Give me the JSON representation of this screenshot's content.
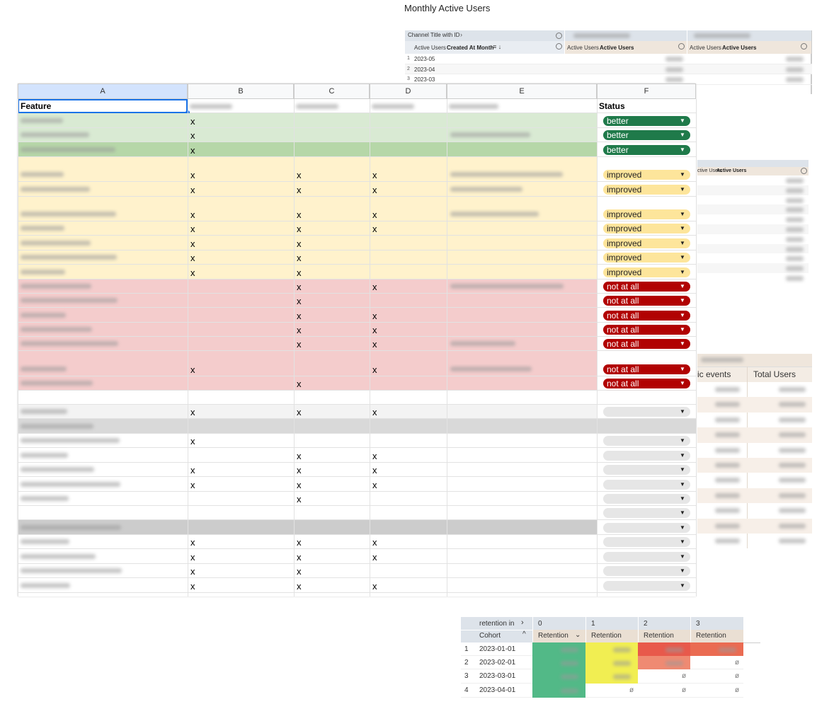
{
  "title": "Monthly Active Users",
  "pivot": {
    "header": "Channel Title with ID",
    "row_metric": "Active Users",
    "row_field": "Created At Month",
    "columns": [
      {
        "metric": "Active Users",
        "field": "Active Users"
      },
      {
        "metric": "Active Users",
        "field": "Active Users"
      }
    ],
    "rows": [
      {
        "index": 1,
        "month": "2023-05"
      },
      {
        "index": 2,
        "month": "2023-04"
      },
      {
        "index": 3,
        "month": "2023-03"
      }
    ]
  },
  "side_panel": {
    "metric": "ctive Users",
    "field": "Active Users"
  },
  "events_panel": {
    "columns": [
      "ic events",
      "Total Users"
    ]
  },
  "sheet": {
    "column_letters": [
      "A",
      "B",
      "C",
      "D",
      "E",
      "F"
    ],
    "feature_header": "Feature",
    "status_header": "Status",
    "rows": [
      {
        "marks": [
          "x",
          null,
          null
        ],
        "status": "better",
        "fill": "#d9ead3"
      },
      {
        "marks": [
          "x",
          null,
          null
        ],
        "status": "better",
        "fill": "#d9ead3"
      },
      {
        "marks": [
          "x",
          null,
          null
        ],
        "status": "better",
        "fill": "#b6d7a8"
      },
      {
        "marks": [
          "x",
          "x",
          "x"
        ],
        "status": "improved",
        "fill": "#fff2cc"
      },
      {
        "marks": [
          "x",
          "x",
          "x"
        ],
        "status": "improved",
        "fill": "#fff2cc"
      },
      {
        "marks": [
          "x",
          "x",
          "x"
        ],
        "status": "improved",
        "fill": "#fff2cc"
      },
      {
        "marks": [
          "x",
          "x",
          "x"
        ],
        "status": "improved",
        "fill": "#fff2cc"
      },
      {
        "marks": [
          "x",
          "x",
          null
        ],
        "status": "improved",
        "fill": "#fff2cc"
      },
      {
        "marks": [
          "x",
          "x",
          null
        ],
        "status": "improved",
        "fill": "#fff2cc"
      },
      {
        "marks": [
          "x",
          "x",
          null
        ],
        "status": "improved",
        "fill": "#fff2cc"
      },
      {
        "marks": [
          null,
          "x",
          "x"
        ],
        "status": "not at all",
        "fill": "#f4cccc"
      },
      {
        "marks": [
          null,
          "x",
          null
        ],
        "status": "not at all",
        "fill": "#f4cccc"
      },
      {
        "marks": [
          null,
          "x",
          "x"
        ],
        "status": "not at all",
        "fill": "#f4cccc"
      },
      {
        "marks": [
          null,
          "x",
          "x"
        ],
        "status": "not at all",
        "fill": "#f4cccc"
      },
      {
        "marks": [
          null,
          "x",
          "x"
        ],
        "status": "not at all",
        "fill": "#f4cccc"
      },
      {
        "marks": [
          "x",
          null,
          "x"
        ],
        "status": "not at all",
        "fill": "#f4cccc"
      },
      {
        "marks": [
          null,
          "x",
          null
        ],
        "status": "not at all",
        "fill": "#f4cccc"
      },
      {
        "marks": [
          null,
          null,
          null
        ],
        "status": null,
        "dropdown": false,
        "fill": "#ffffff"
      },
      {
        "marks": [
          "x",
          "x",
          "x"
        ],
        "status": null,
        "fill": "#f3f3f3"
      },
      {
        "marks": [
          null,
          null,
          null
        ],
        "status": null,
        "dropdown": false,
        "fill": "#d9d9d9"
      },
      {
        "marks": [
          "x",
          null,
          null
        ],
        "status": null,
        "fill": "#ffffff"
      },
      {
        "marks": [
          null,
          "x",
          "x"
        ],
        "status": null,
        "fill": "#ffffff"
      },
      {
        "marks": [
          "x",
          "x",
          "x"
        ],
        "status": null,
        "fill": "#ffffff"
      },
      {
        "marks": [
          "x",
          "x",
          "x"
        ],
        "status": null,
        "fill": "#ffffff"
      },
      {
        "marks": [
          null,
          "x",
          null
        ],
        "status": null,
        "fill": "#ffffff"
      },
      {
        "marks": [
          null,
          null,
          null
        ],
        "status": null,
        "fill": "#ffffff"
      },
      {
        "marks": [
          null,
          null,
          null
        ],
        "status": null,
        "fill": "#cccccc"
      },
      {
        "marks": [
          "x",
          "x",
          "x"
        ],
        "status": null,
        "fill": "#ffffff"
      },
      {
        "marks": [
          "x",
          "x",
          "x"
        ],
        "status": null,
        "fill": "#ffffff"
      },
      {
        "marks": [
          "x",
          "x",
          null
        ],
        "status": null,
        "fill": "#ffffff"
      },
      {
        "marks": [
          "x",
          "x",
          "x"
        ],
        "status": null,
        "fill": "#ffffff"
      }
    ],
    "status_colors": {
      "better": "#1f7a4a",
      "improved": "#fde59b",
      "not at all": "#b10202"
    }
  },
  "retention": {
    "dimension": "retention in",
    "periods": [
      0,
      1,
      2,
      3
    ],
    "row_label": "Cohort",
    "measure": "Retention",
    "rows": [
      {
        "index": 1,
        "cohort": "2023-01-01",
        "cells": [
          null,
          null,
          null,
          null
        ],
        "fills": [
          "#52b987",
          "#f1ee52",
          "#e8594b",
          "#ea6b52"
        ]
      },
      {
        "index": 2,
        "cohort": "2023-02-01",
        "cells": [
          null,
          null,
          null,
          "ø"
        ],
        "fills": [
          "#52b987",
          "#f1ee52",
          "#ef8a72",
          null
        ]
      },
      {
        "index": 3,
        "cohort": "2023-03-01",
        "cells": [
          null,
          null,
          "ø",
          "ø"
        ],
        "fills": [
          "#52b987",
          "#f1ee52",
          null,
          null
        ]
      },
      {
        "index": 4,
        "cohort": "2023-04-01",
        "cells": [
          null,
          "ø",
          "ø",
          "ø"
        ],
        "fills": [
          "#52b987",
          null,
          null,
          null
        ]
      }
    ]
  }
}
